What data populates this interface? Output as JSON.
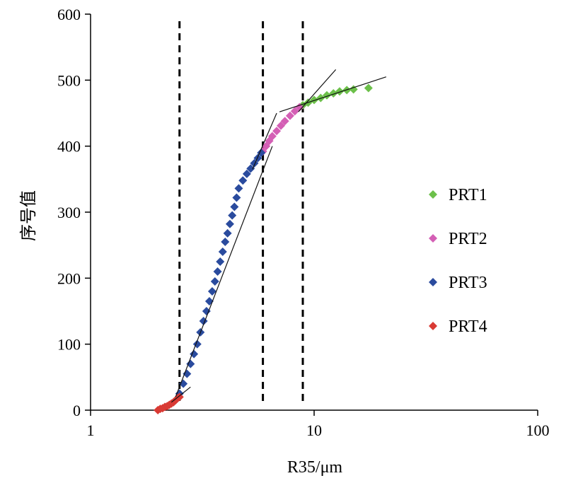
{
  "chart_data": {
    "type": "scatter",
    "x_scale": "log",
    "title": "",
    "xlabel": "R35/μm",
    "ylabel": "序号值",
    "xlim": [
      1,
      100
    ],
    "ylim": [
      0,
      600
    ],
    "x_ticks": [
      1,
      10,
      100
    ],
    "x_tick_labels": [
      "1",
      "10",
      "100"
    ],
    "y_ticks": [
      0,
      100,
      200,
      300,
      400,
      500,
      600
    ],
    "y_tick_labels": [
      "0",
      "100",
      "200",
      "300",
      "400",
      "500",
      "600"
    ],
    "grid": false,
    "legend_position": "right",
    "boundaries_x": [
      2.5,
      5.9,
      8.9
    ],
    "series": [
      {
        "name": "PRT1",
        "color": "#6cc04a",
        "points": [
          [
            8.9,
            462
          ],
          [
            9.4,
            466
          ],
          [
            10.0,
            470
          ],
          [
            10.7,
            473
          ],
          [
            11.4,
            477
          ],
          [
            12.2,
            480
          ],
          [
            13.0,
            483
          ],
          [
            14.0,
            485
          ],
          [
            15.0,
            486
          ],
          [
            17.5,
            488
          ]
        ]
      },
      {
        "name": "PRT2",
        "color": "#d45fb5",
        "points": [
          [
            5.9,
            392
          ],
          [
            6.1,
            400
          ],
          [
            6.3,
            408
          ],
          [
            6.5,
            415
          ],
          [
            6.8,
            423
          ],
          [
            7.1,
            431
          ],
          [
            7.4,
            438
          ],
          [
            7.8,
            446
          ],
          [
            8.2,
            453
          ],
          [
            8.6,
            459
          ]
        ]
      },
      {
        "name": "PRT3",
        "color": "#2a4b9e",
        "points": [
          [
            2.5,
            25
          ],
          [
            2.6,
            40
          ],
          [
            2.7,
            55
          ],
          [
            2.8,
            70
          ],
          [
            2.9,
            85
          ],
          [
            3.0,
            100
          ],
          [
            3.1,
            118
          ],
          [
            3.2,
            135
          ],
          [
            3.3,
            150
          ],
          [
            3.4,
            165
          ],
          [
            3.5,
            180
          ],
          [
            3.6,
            195
          ],
          [
            3.7,
            210
          ],
          [
            3.8,
            225
          ],
          [
            3.9,
            240
          ],
          [
            4.0,
            255
          ],
          [
            4.1,
            268
          ],
          [
            4.2,
            282
          ],
          [
            4.3,
            295
          ],
          [
            4.4,
            308
          ],
          [
            4.5,
            322
          ],
          [
            4.6,
            336
          ],
          [
            4.8,
            348
          ],
          [
            5.0,
            358
          ],
          [
            5.2,
            366
          ],
          [
            5.4,
            374
          ],
          [
            5.6,
            382
          ],
          [
            5.8,
            390
          ]
        ]
      },
      {
        "name": "PRT4",
        "color": "#d93a34",
        "points": [
          [
            2.0,
            0
          ],
          [
            2.05,
            2
          ],
          [
            2.1,
            3
          ],
          [
            2.15,
            5
          ],
          [
            2.2,
            6
          ],
          [
            2.25,
            8
          ],
          [
            2.3,
            10
          ],
          [
            2.35,
            12
          ],
          [
            2.4,
            15
          ],
          [
            2.45,
            18
          ],
          [
            2.5,
            20
          ]
        ]
      }
    ],
    "fit_lines": [
      {
        "x": [
          2.3,
          2.8
        ],
        "y": [
          12,
          35
        ]
      },
      {
        "x": [
          2.4,
          6.5
        ],
        "y": [
          20,
          400
        ]
      },
      {
        "x": [
          5.3,
          6.8
        ],
        "y": [
          365,
          450
        ]
      },
      {
        "x": [
          8.5,
          12.5
        ],
        "y": [
          452,
          516
        ]
      },
      {
        "x": [
          7.0,
          21.0
        ],
        "y": [
          452,
          505
        ]
      }
    ]
  }
}
